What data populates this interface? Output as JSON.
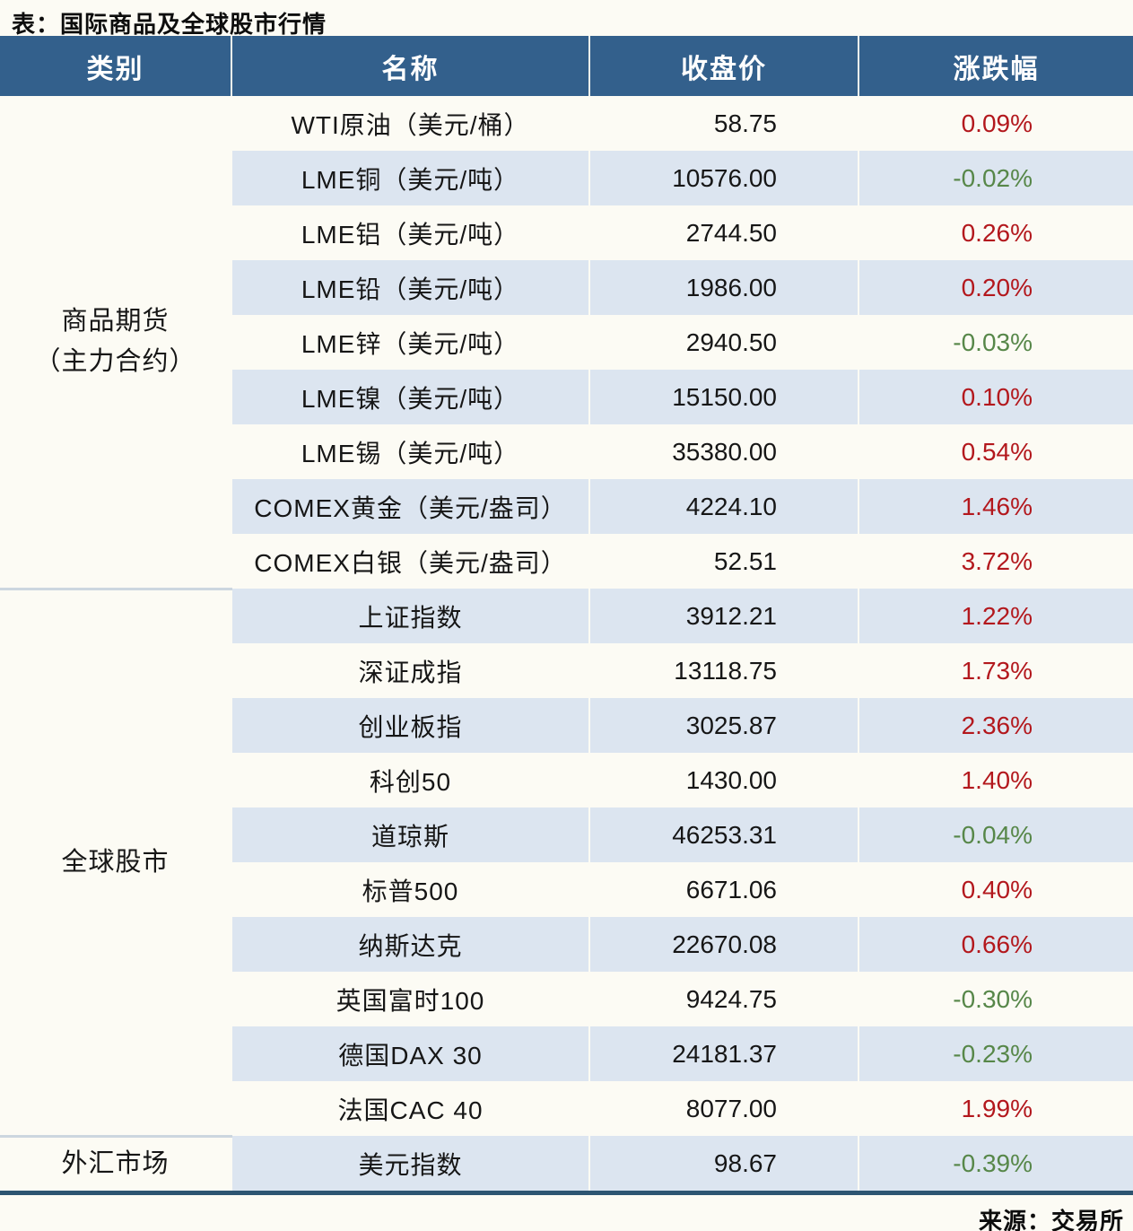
{
  "title": "表：国际商品及全球股市行情",
  "source": "来源：交易所",
  "colors": {
    "header_background": "#33608c",
    "banded_row": "#dce5f0",
    "positive_change_red": "#b3181d",
    "negative_change_green": "#578749",
    "group_separator": "#ccd6df",
    "bottom_border": "#2d5571"
  },
  "chart_data": {
    "type": "table",
    "title": "表：国际商品及全球股市行情",
    "columns": [
      "类别",
      "名称",
      "收盘价",
      "涨跌幅"
    ],
    "groups": [
      {
        "category": [
          "商品期货",
          "（主力合约）"
        ],
        "rows": [
          {
            "name": "WTI原油（美元/桶）",
            "close": "58.75",
            "change": "0.09%"
          },
          {
            "name": "LME铜（美元/吨）",
            "close": "10576.00",
            "change": "-0.02%"
          },
          {
            "name": "LME铝（美元/吨）",
            "close": "2744.50",
            "change": "0.26%"
          },
          {
            "name": "LME铅（美元/吨）",
            "close": "1986.00",
            "change": "0.20%"
          },
          {
            "name": "LME锌（美元/吨）",
            "close": "2940.50",
            "change": "-0.03%"
          },
          {
            "name": "LME镍（美元/吨）",
            "close": "15150.00",
            "change": "0.10%"
          },
          {
            "name": "LME锡（美元/吨）",
            "close": "35380.00",
            "change": "0.54%"
          },
          {
            "name": "COMEX黄金（美元/盎司）",
            "close": "4224.10",
            "change": "1.46%"
          },
          {
            "name": "COMEX白银（美元/盎司）",
            "close": "52.51",
            "change": "3.72%"
          }
        ]
      },
      {
        "category": [
          "全球股市"
        ],
        "rows": [
          {
            "name": "上证指数",
            "close": "3912.21",
            "change": "1.22%"
          },
          {
            "name": "深证成指",
            "close": "13118.75",
            "change": "1.73%"
          },
          {
            "name": "创业板指",
            "close": "3025.87",
            "change": "2.36%"
          },
          {
            "name": "科创50",
            "close": "1430.00",
            "change": "1.40%"
          },
          {
            "name": "道琼斯",
            "close": "46253.31",
            "change": "-0.04%"
          },
          {
            "name": "标普500",
            "close": "6671.06",
            "change": "0.40%"
          },
          {
            "name": "纳斯达克",
            "close": "22670.08",
            "change": "0.66%"
          },
          {
            "name": "英国富时100",
            "close": "9424.75",
            "change": "-0.30%"
          },
          {
            "name": "德国DAX 30",
            "close": "24181.37",
            "change": "-0.23%"
          },
          {
            "name": "法国CAC 40",
            "close": "8077.00",
            "change": "1.99%"
          }
        ]
      },
      {
        "category": [
          "外汇市场"
        ],
        "rows": [
          {
            "name": "美元指数",
            "close": "98.67",
            "change": "-0.39%"
          }
        ]
      }
    ],
    "source": "来源：交易所",
    "layout": {
      "legend": "none",
      "grid": "banded-rows"
    }
  }
}
